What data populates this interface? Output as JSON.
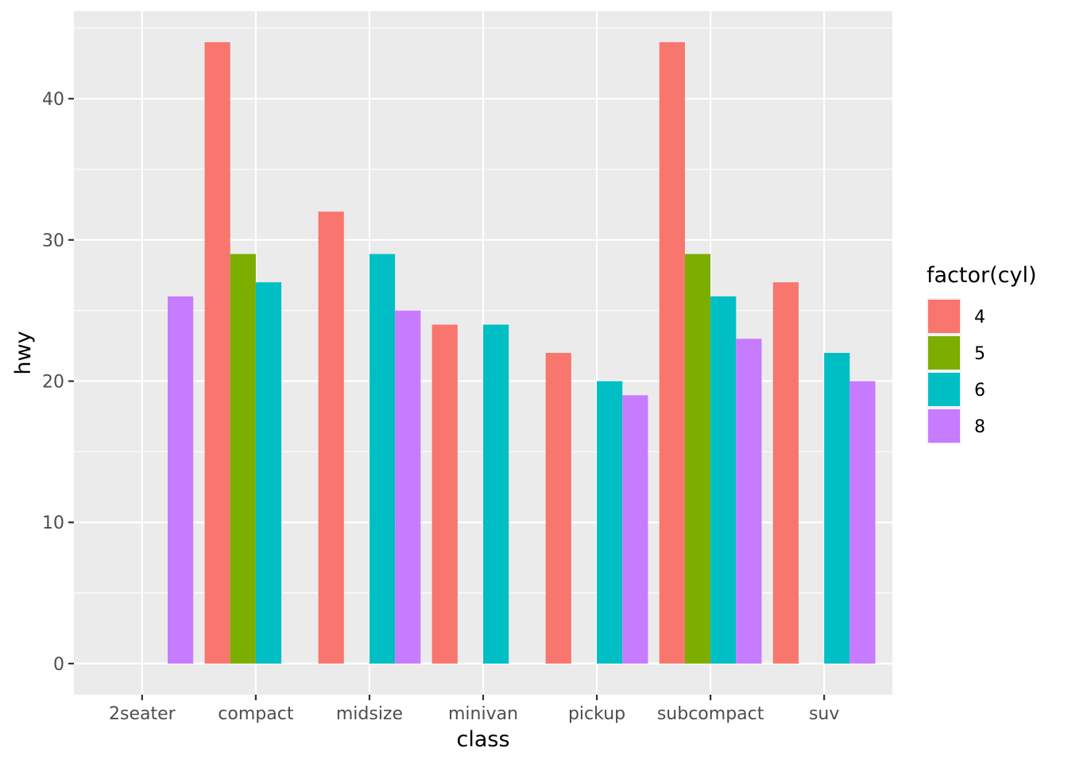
{
  "chart_data": {
    "type": "bar",
    "position": "dodge",
    "xlabel": "class",
    "ylabel": "hwy",
    "categories": [
      "2seater",
      "compact",
      "midsize",
      "minivan",
      "pickup",
      "subcompact",
      "suv"
    ],
    "ylim": [
      -2.2,
      46.2
    ],
    "yticks": [
      0,
      10,
      20,
      30,
      40
    ],
    "grid": true,
    "legend": {
      "title": "factor(cyl)",
      "placement": "right",
      "entries": [
        "4",
        "5",
        "6",
        "8"
      ]
    },
    "colors": {
      "4": "#F8766D",
      "5": "#7CAE00",
      "6": "#00BFC4",
      "8": "#C77CFF",
      "panel_background": "#EBEBEB",
      "grid": "#FFFFFF"
    },
    "bars": [
      {
        "category": "2seater",
        "group": "8",
        "value": 26
      },
      {
        "category": "compact",
        "group": "4",
        "value": 44
      },
      {
        "category": "compact",
        "group": "5",
        "value": 29
      },
      {
        "category": "compact",
        "group": "6",
        "value": 27
      },
      {
        "category": "midsize",
        "group": "4",
        "value": 32
      },
      {
        "category": "midsize",
        "group": "6",
        "value": 29
      },
      {
        "category": "midsize",
        "group": "8",
        "value": 25
      },
      {
        "category": "minivan",
        "group": "4",
        "value": 24
      },
      {
        "category": "minivan",
        "group": "6",
        "value": 24
      },
      {
        "category": "pickup",
        "group": "4",
        "value": 22
      },
      {
        "category": "pickup",
        "group": "6",
        "value": 20
      },
      {
        "category": "pickup",
        "group": "8",
        "value": 19
      },
      {
        "category": "subcompact",
        "group": "4",
        "value": 44
      },
      {
        "category": "subcompact",
        "group": "5",
        "value": 29
      },
      {
        "category": "subcompact",
        "group": "6",
        "value": 26
      },
      {
        "category": "subcompact",
        "group": "8",
        "value": 23
      },
      {
        "category": "suv",
        "group": "4",
        "value": 27
      },
      {
        "category": "suv",
        "group": "6",
        "value": 22
      },
      {
        "category": "suv",
        "group": "8",
        "value": 20
      }
    ]
  }
}
